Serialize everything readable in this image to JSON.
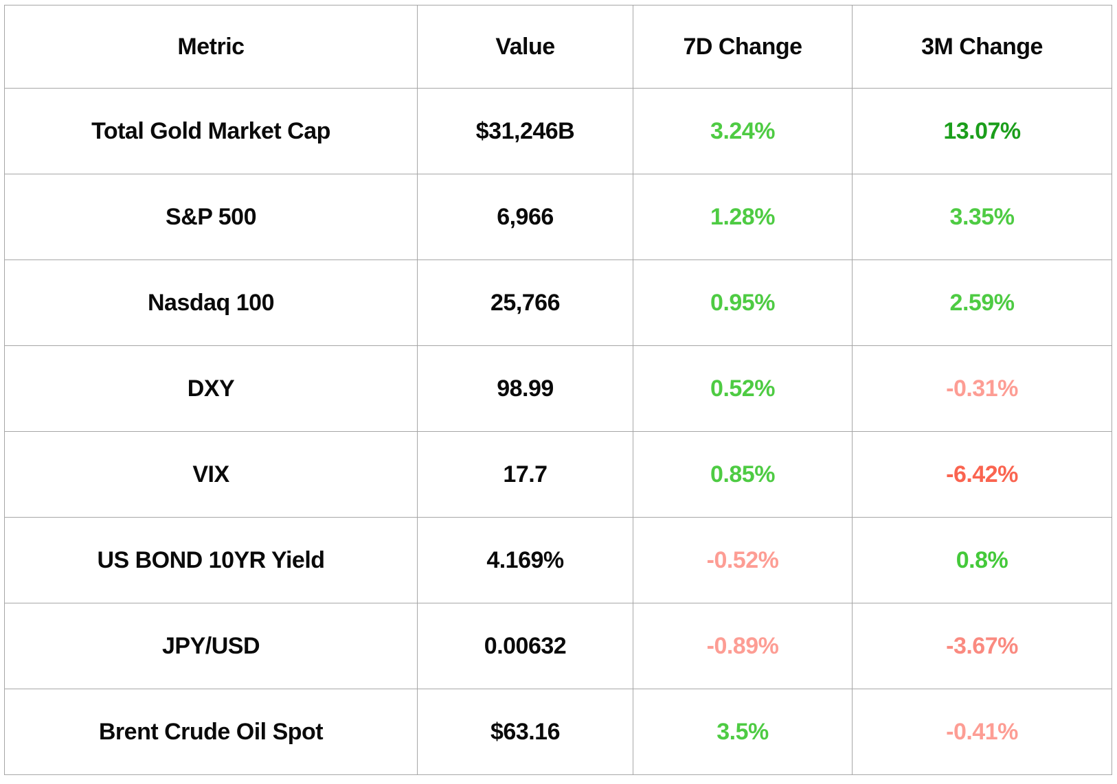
{
  "colors": {
    "text": "#0a0a0a",
    "border": "#a6a6a6",
    "positive": "#4ecb43",
    "positive_strong": "#1b9e1b",
    "negative_light": "#fd9d94",
    "negative_mid": "#fa8a80",
    "negative_strong": "#fa6450"
  },
  "table": {
    "columns": [
      "Metric",
      "Value",
      "7D Change",
      "3M Change"
    ],
    "rows": [
      {
        "metric": "Total Gold Market Cap",
        "value": "$31,246B",
        "change_7d": {
          "text": "3.24%",
          "color": "#4ecb43"
        },
        "change_3m": {
          "text": "13.07%",
          "color": "#1b9e1b"
        }
      },
      {
        "metric": "S&P 500",
        "value": "6,966",
        "change_7d": {
          "text": "1.28%",
          "color": "#4ecb43"
        },
        "change_3m": {
          "text": "3.35%",
          "color": "#4ecb43"
        }
      },
      {
        "metric": "Nasdaq 100",
        "value": "25,766",
        "change_7d": {
          "text": "0.95%",
          "color": "#4ecb43"
        },
        "change_3m": {
          "text": "2.59%",
          "color": "#4ecb43"
        }
      },
      {
        "metric": "DXY",
        "value": "98.99",
        "change_7d": {
          "text": "0.52%",
          "color": "#4ecb43"
        },
        "change_3m": {
          "text": "-0.31%",
          "color": "#fd9d94"
        }
      },
      {
        "metric": "VIX",
        "value": "17.7",
        "change_7d": {
          "text": "0.85%",
          "color": "#4ecb43"
        },
        "change_3m": {
          "text": "-6.42%",
          "color": "#fa6450"
        }
      },
      {
        "metric": "US BOND 10YR Yield",
        "value": "4.169%",
        "change_7d": {
          "text": "-0.52%",
          "color": "#fd9d94"
        },
        "change_3m": {
          "text": "0.8%",
          "color": "#44c93a"
        }
      },
      {
        "metric": "JPY/USD",
        "value": "0.00632",
        "change_7d": {
          "text": "-0.89%",
          "color": "#fd9d94"
        },
        "change_3m": {
          "text": "-3.67%",
          "color": "#fa8a80"
        }
      },
      {
        "metric": "Brent Crude Oil Spot",
        "value": "$63.16",
        "change_7d": {
          "text": "3.5%",
          "color": "#4ecb43"
        },
        "change_3m": {
          "text": "-0.41%",
          "color": "#fd9d94"
        }
      }
    ]
  },
  "chart_data": {
    "type": "table",
    "columns": [
      "Metric",
      "Value",
      "7D Change",
      "3M Change"
    ],
    "rows": [
      [
        "Total Gold Market Cap",
        "$31,246B",
        "3.24%",
        "13.07%"
      ],
      [
        "S&P 500",
        "6,966",
        "1.28%",
        "3.35%"
      ],
      [
        "Nasdaq 100",
        "25,766",
        "0.95%",
        "2.59%"
      ],
      [
        "DXY",
        "98.99",
        "0.52%",
        "-0.31%"
      ],
      [
        "VIX",
        "17.7",
        "0.85%",
        "-6.42%"
      ],
      [
        "US BOND 10YR Yield",
        "4.169%",
        "-0.52%",
        "0.8%"
      ],
      [
        "JPY/USD",
        "0.00632",
        "-0.89%",
        "-3.67%"
      ],
      [
        "Brent Crude Oil Spot",
        "$63.16",
        "3.5%",
        "-0.41%"
      ]
    ],
    "notes": "Positive changes rendered green (darker green for large values), negative changes rendered salmon/red (deeper red for larger magnitude)."
  }
}
